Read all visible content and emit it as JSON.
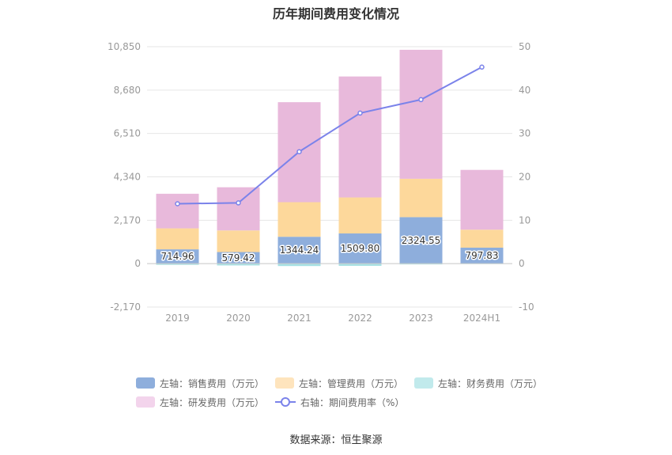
{
  "chart_data": {
    "type": "bar",
    "stacked": true,
    "title": "历年期间费用变化情况",
    "categories": [
      "2019",
      "2020",
      "2021",
      "2022",
      "2023",
      "2024H1"
    ],
    "series": [
      {
        "name": "左轴：销售费用（万元）",
        "axis": "left",
        "color": "#8eaedc",
        "values": [
          714.96,
          579.42,
          1344.24,
          1509.8,
          2324.55,
          797.83
        ],
        "labels": [
          "714.96",
          "579.42",
          "1344.24",
          "1509.80",
          "2324.55",
          "797.83"
        ]
      },
      {
        "name": "左轴：管理费用（万元）",
        "axis": "left",
        "color": "#fdd89b",
        "values": [
          1050,
          1080,
          1730,
          1800,
          1920,
          900
        ]
      },
      {
        "name": "左轴：财务费用（万元）",
        "axis": "left",
        "color": "#a6e1e4",
        "values": [
          -60,
          -90,
          -120,
          -110,
          -40,
          -20
        ]
      },
      {
        "name": "左轴：研发费用（万元）",
        "axis": "left",
        "color": "#e8b9db",
        "values": [
          1730,
          2160,
          5000,
          6050,
          6450,
          2990
        ]
      },
      {
        "name": "右轴：期间费用率（%）",
        "axis": "right",
        "type": "line",
        "color": "#7b83ea",
        "values": [
          13.8,
          14.0,
          25.8,
          34.7,
          37.8,
          45.3
        ]
      }
    ],
    "left_axis": {
      "min": -2170,
      "max": 10850,
      "ticks": [
        -2170,
        0,
        2170,
        4340,
        6510,
        8680,
        10850
      ],
      "tick_labels": [
        "-2,170",
        "0",
        "2,170",
        "4,340",
        "6,510",
        "8,680",
        "10,850"
      ]
    },
    "right_axis": {
      "min": -10,
      "max": 50,
      "ticks": [
        -10,
        0,
        10,
        20,
        30,
        40,
        50
      ],
      "tick_labels": [
        "-10",
        "0",
        "10",
        "20",
        "30",
        "40",
        "50"
      ]
    },
    "grid": true,
    "legend_position": "bottom"
  },
  "legend": {
    "items": [
      {
        "label": "左轴：销售费用（万元）",
        "color": "#8eaedc"
      },
      {
        "label": "左轴：管理费用（万元）",
        "color": "#fee4bd"
      },
      {
        "label": "左轴：财务费用（万元）",
        "color": "#c1eaec"
      },
      {
        "label": "左轴：研发费用（万元）",
        "color": "#f3d4ec"
      },
      {
        "label": "右轴：期间费用率（%）",
        "color": "#7b83ea"
      }
    ]
  },
  "source": "数据来源：恒生聚源"
}
